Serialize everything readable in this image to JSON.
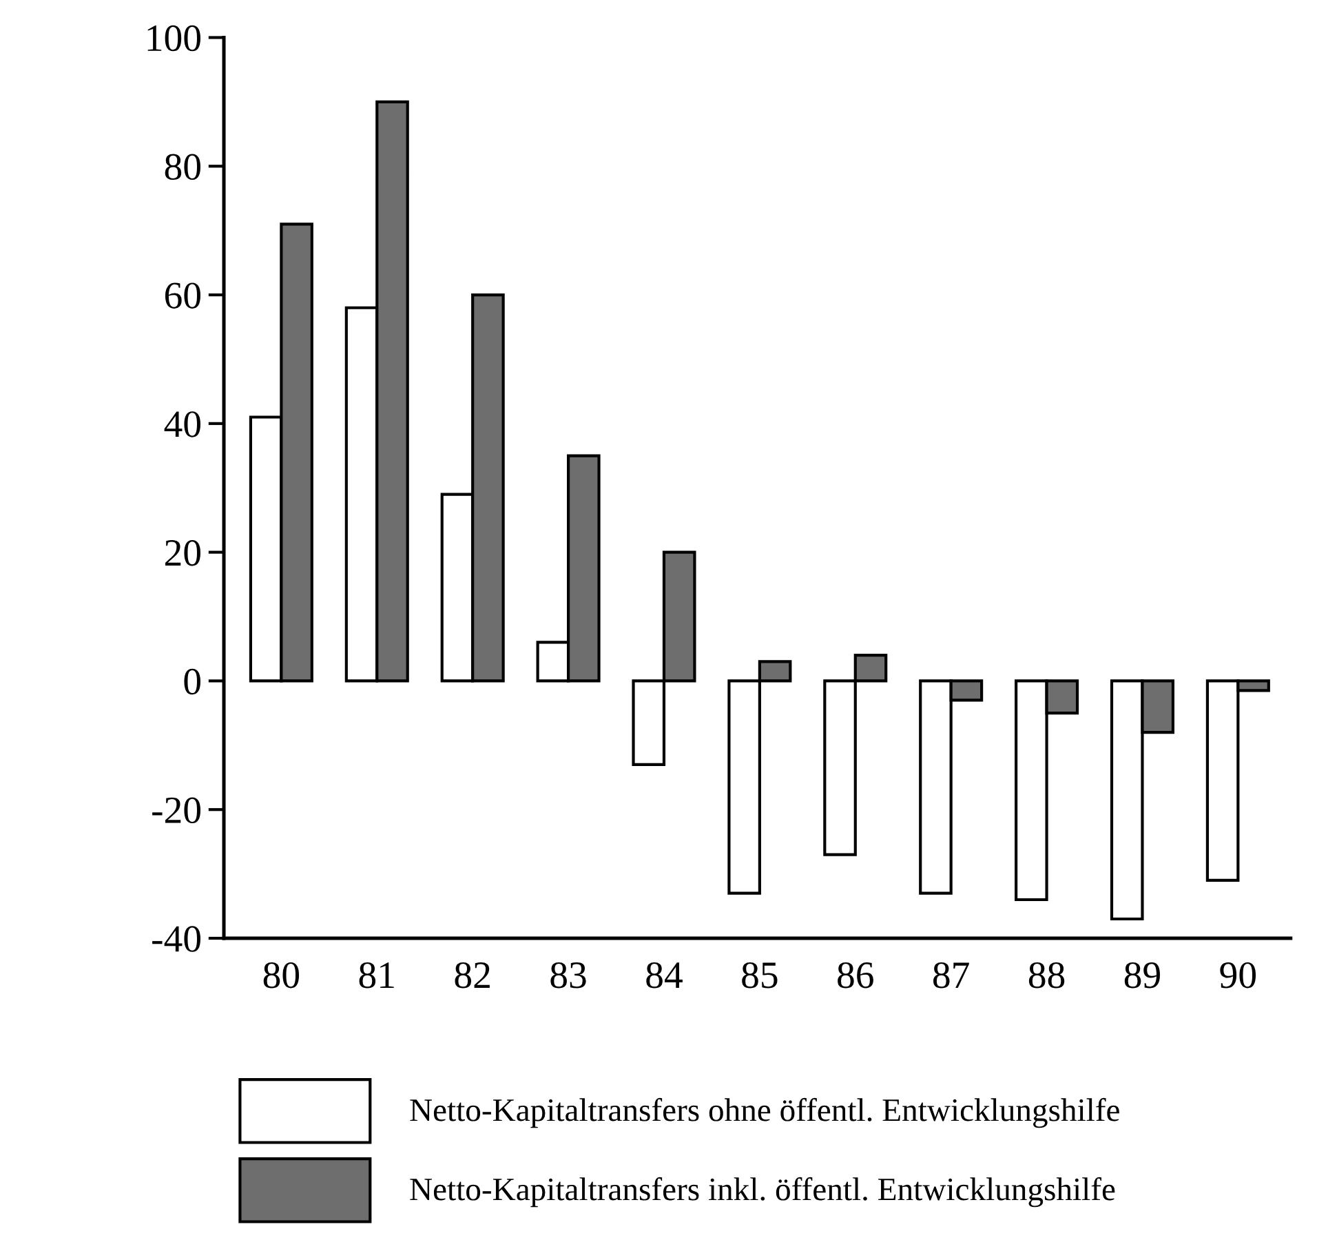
{
  "chart_data": {
    "type": "bar",
    "categories": [
      "80",
      "81",
      "82",
      "83",
      "84",
      "85",
      "86",
      "87",
      "88",
      "89",
      "90"
    ],
    "series": [
      {
        "name": "Netto-Kapitaltransfers ohne öffentl. Entwicklungshilfe",
        "color": "#ffffff",
        "values": [
          41,
          58,
          29,
          6,
          -13,
          -33,
          -27,
          -33,
          -34,
          -37,
          -31
        ]
      },
      {
        "name": "Netto-Kapitaltransfers inkl. öffentl. Entwicklungshilfe",
        "color": "#6e6e6e",
        "values": [
          71,
          90,
          60,
          35,
          20,
          3,
          4,
          -3,
          -5,
          -8,
          -1.5
        ]
      }
    ],
    "ylim": [
      -40,
      100
    ],
    "yticks": [
      -40,
      -20,
      0,
      20,
      40,
      60,
      80,
      100
    ],
    "grid": false,
    "legend": "bottom"
  }
}
